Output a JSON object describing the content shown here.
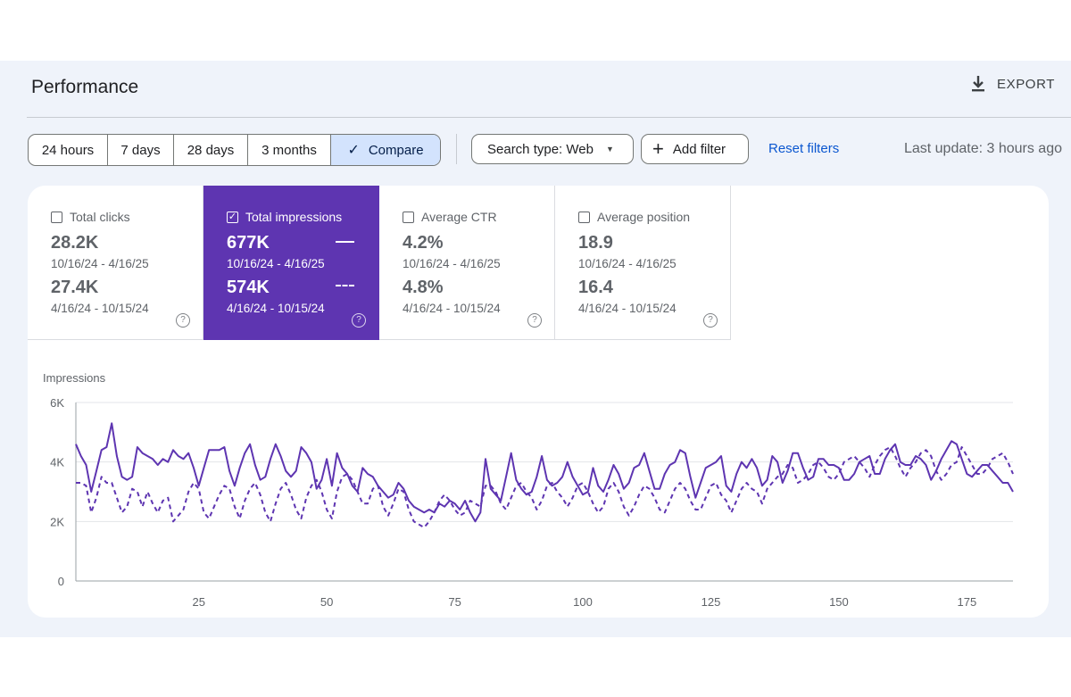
{
  "header": {
    "title": "Performance",
    "export_label": "EXPORT"
  },
  "toolbar": {
    "ranges": [
      "24 hours",
      "7 days",
      "28 days",
      "3 months"
    ],
    "compare_label": "Compare",
    "search_type_label": "Search type: Web",
    "add_filter_label": "Add filter",
    "reset_label": "Reset filters",
    "last_update": "Last update: 3 hours ago"
  },
  "metrics": [
    {
      "label": "Total clicks",
      "checked": false,
      "value_current": "28.2K",
      "range_current": "10/16/24 - 4/16/25",
      "value_previous": "27.4K",
      "range_previous": "4/16/24 - 10/15/24"
    },
    {
      "label": "Total impressions",
      "checked": true,
      "value_current": "677K",
      "range_current": "10/16/24 - 4/16/25",
      "value_previous": "574K",
      "range_previous": "4/16/24 - 10/15/24"
    },
    {
      "label": "Average CTR",
      "checked": false,
      "value_current": "4.2%",
      "range_current": "10/16/24 - 4/16/25",
      "value_previous": "4.8%",
      "range_previous": "4/16/24 - 10/15/24"
    },
    {
      "label": "Average position",
      "checked": false,
      "value_current": "18.9",
      "range_current": "10/16/24 - 4/16/25",
      "value_previous": "16.4",
      "range_previous": "4/16/24 - 10/15/24"
    }
  ],
  "colors": {
    "accent": "#5e35b1",
    "link": "#0b57d0",
    "selected_range_bg": "#d3e3fd",
    "panel_bg": "#eff3fa"
  },
  "icons": {
    "export": "download-icon",
    "compare_check": "check-icon",
    "dropdown": "caret-down-icon",
    "add": "plus-icon",
    "help": "help-circle-icon"
  },
  "chart_data": {
    "type": "line",
    "ylabel": "Impressions",
    "ylim": [
      0,
      6000
    ],
    "yticks": [
      0,
      2000,
      4000,
      6000
    ],
    "ytick_labels": [
      "0",
      "2K",
      "4K",
      "6K"
    ],
    "xlim": [
      1,
      184
    ],
    "xticks": [
      25,
      50,
      75,
      100,
      125,
      150,
      175
    ],
    "grid": true,
    "series": [
      {
        "style": "solid",
        "color": "#5e35b1",
        "values": [
          4600,
          4200,
          3900,
          3000,
          3700,
          4400,
          4500,
          5300,
          4200,
          3500,
          3400,
          3500,
          4500,
          4300,
          4200,
          4100,
          3900,
          4100,
          4000,
          4400,
          4200,
          4100,
          4300,
          3800,
          3200,
          3800,
          4400,
          4400,
          4400,
          4500,
          3700,
          3200,
          3800,
          4300,
          4600,
          3900,
          3400,
          3500,
          4100,
          4600,
          4200,
          3700,
          3500,
          3700,
          4500,
          4300,
          4000,
          3100,
          3400,
          4100,
          3200,
          4300,
          3800,
          3600,
          3200,
          3000,
          3800,
          3600,
          3500,
          3200,
          3000,
          2800,
          2900,
          3300,
          3100,
          2700,
          2500,
          2400,
          2300,
          2400,
          2300,
          2600,
          2500,
          2700,
          2600,
          2400,
          2700,
          2300,
          2000,
          2300,
          4100,
          3100,
          2900,
          2700,
          3500,
          4300,
          3400,
          3100,
          2900,
          3000,
          3500,
          4200,
          3400,
          3200,
          3300,
          3500,
          4000,
          3500,
          3200,
          2900,
          3000,
          3800,
          3200,
          3000,
          3400,
          3900,
          3600,
          3100,
          3300,
          3800,
          3900,
          4300,
          3700,
          3100,
          3100,
          3600,
          3900,
          4000,
          4400,
          4300,
          3500,
          2800,
          3300,
          3800,
          3900,
          4000,
          4200,
          3200,
          3000,
          3600,
          4000,
          3800,
          4100,
          3800,
          3200,
          3400,
          4200,
          4000,
          3300,
          3700,
          4300,
          4300,
          3800,
          3400,
          3500,
          4100,
          4100,
          3900,
          3900,
          3800,
          3400,
          3400,
          3600,
          4000,
          4100,
          4200,
          3600,
          3600,
          4100,
          4400,
          4600,
          4000,
          3900,
          3900,
          4200,
          4100,
          3900,
          3400,
          3700,
          4100,
          4400,
          4700,
          4600,
          4100,
          3600,
          3500,
          3700,
          3900,
          3900,
          3700,
          3500,
          3300,
          3300,
          3000
        ]
      },
      {
        "style": "dashed",
        "color": "#5e35b1",
        "values": [
          3300,
          3300,
          3200,
          2300,
          2800,
          3500,
          3300,
          3300,
          2800,
          2300,
          2500,
          3100,
          3000,
          2500,
          3000,
          2600,
          2300,
          2700,
          2800,
          2000,
          2200,
          2400,
          3000,
          3300,
          3100,
          2300,
          2100,
          2500,
          2900,
          3200,
          3100,
          2500,
          2100,
          2700,
          3100,
          3300,
          2900,
          2300,
          2000,
          2600,
          3100,
          3300,
          2900,
          2400,
          2100,
          2800,
          3200,
          3400,
          3000,
          2400,
          2100,
          3000,
          3500,
          3600,
          3400,
          3000,
          2600,
          2600,
          3100,
          3200,
          2500,
          2200,
          2600,
          3100,
          3000,
          2400,
          2000,
          1900,
          1800,
          2000,
          2300,
          2700,
          2900,
          2700,
          2400,
          2200,
          2300,
          2700,
          2600,
          2500,
          3200,
          3200,
          3000,
          2600,
          2400,
          2800,
          3200,
          3300,
          3000,
          2800,
          2400,
          2700,
          3200,
          3300,
          3000,
          2800,
          2500,
          2800,
          3200,
          3300,
          3000,
          2600,
          2300,
          2500,
          3100,
          3300,
          3000,
          2500,
          2200,
          2500,
          2900,
          3200,
          3100,
          2800,
          2400,
          2300,
          2700,
          3100,
          3300,
          3100,
          2700,
          2400,
          2400,
          2800,
          3200,
          3300,
          2900,
          2700,
          2300,
          2700,
          3100,
          3300,
          3100,
          3000,
          2600,
          3100,
          3300,
          3500,
          3600,
          3900,
          3800,
          3300,
          3400,
          3600,
          3900,
          4000,
          3800,
          3500,
          3400,
          3600,
          4000,
          4100,
          4200,
          4000,
          3800,
          3500,
          3900,
          4200,
          4400,
          4500,
          4200,
          3800,
          3500,
          3800,
          4000,
          4300,
          4400,
          4200,
          3700,
          3400,
          3600,
          3900,
          4000,
          4500,
          4200,
          3900,
          3600,
          3600,
          3800,
          4100,
          4200,
          4300,
          4000,
          3600
        ]
      }
    ]
  }
}
